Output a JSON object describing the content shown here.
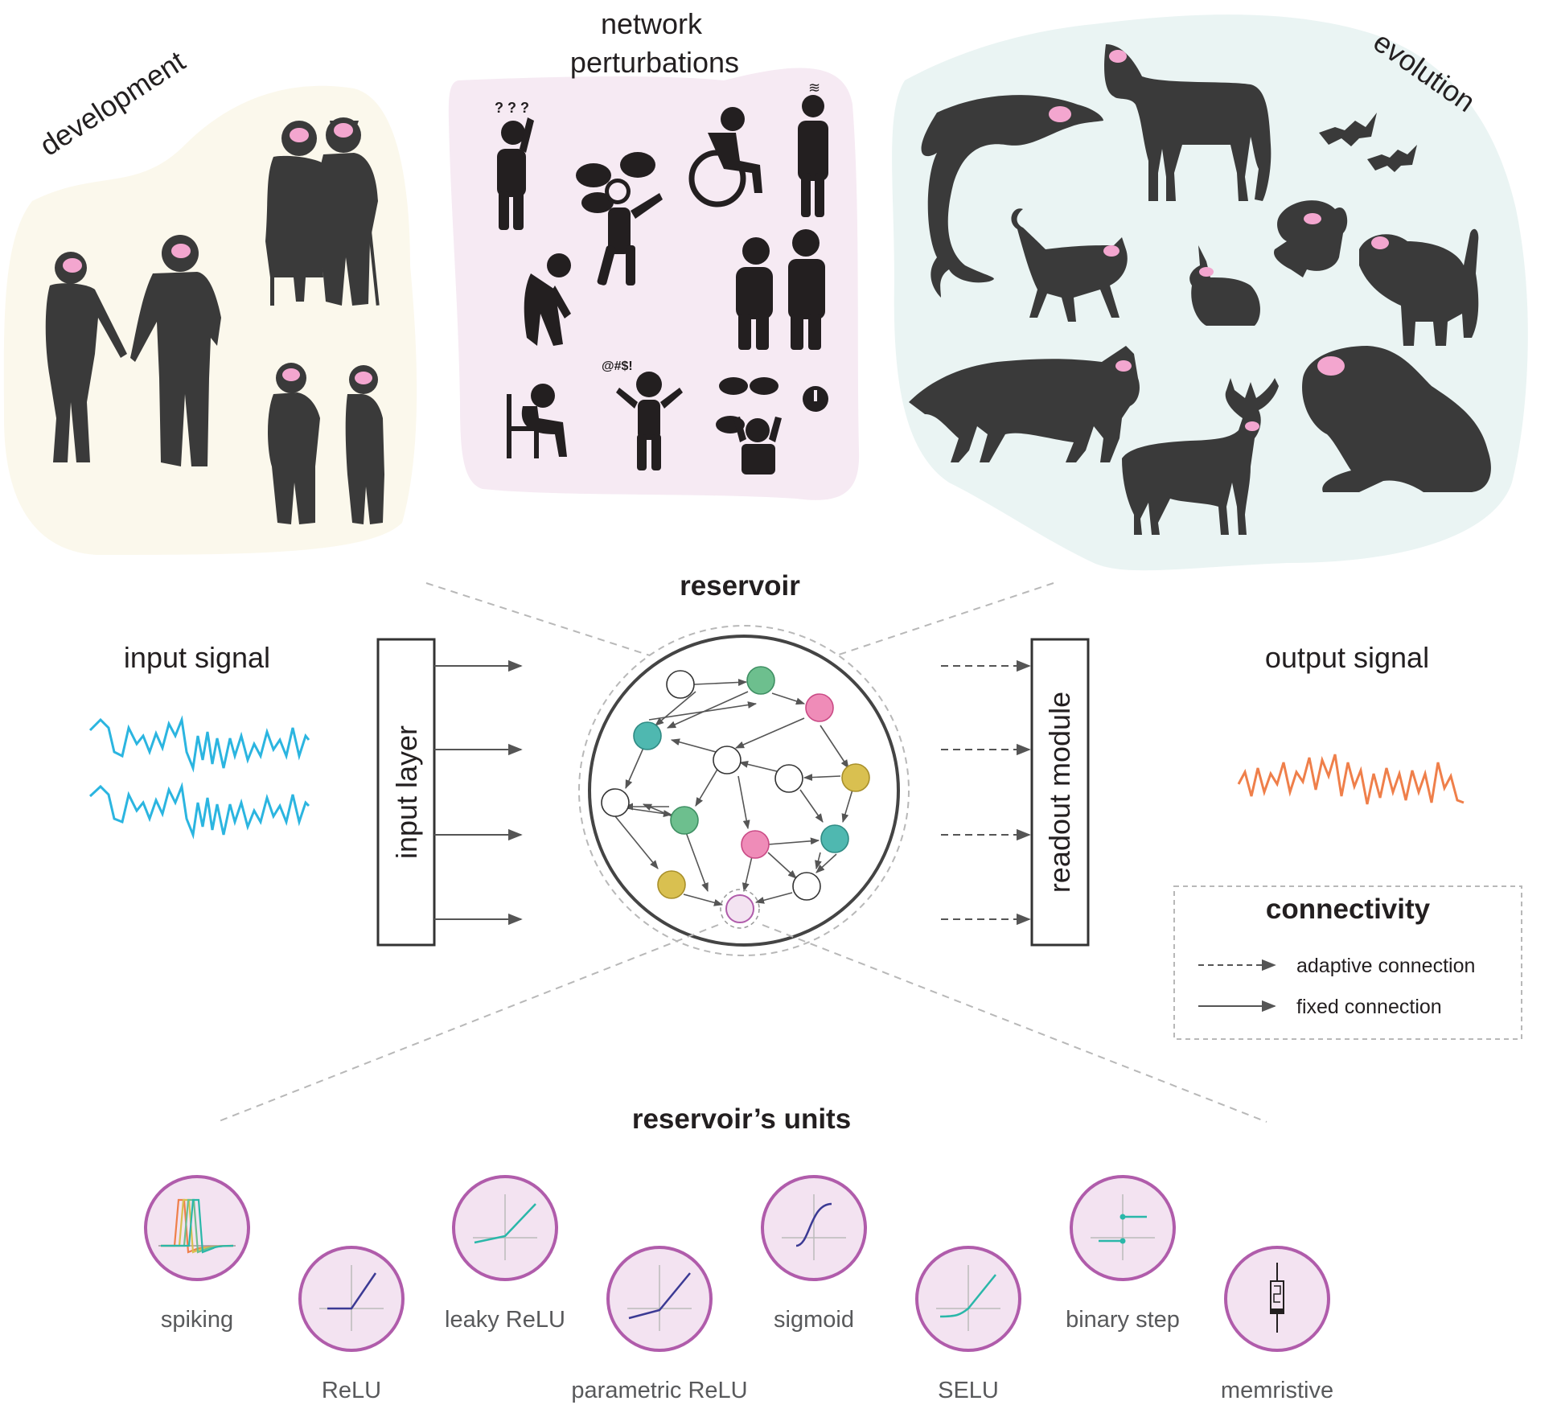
{
  "categories": {
    "development": "development",
    "network_perturbations_line1": "network",
    "network_perturbations_line2": "perturbations",
    "evolution": "evolution"
  },
  "reservoir": {
    "title": "reservoir"
  },
  "input": {
    "signal": "input signal",
    "layer": "input layer"
  },
  "output": {
    "signal": "output signal",
    "readout": "readout module"
  },
  "legend": {
    "title": "connectivity",
    "adaptive": "adaptive connection",
    "fixed": "fixed connection"
  },
  "units": {
    "title": "reservoir’s units",
    "items": [
      {
        "key": "spiking",
        "label": "spiking"
      },
      {
        "key": "relu",
        "label": "ReLU"
      },
      {
        "key": "leaky",
        "label": "leaky ReLU"
      },
      {
        "key": "prelu",
        "label": "parametric ReLU"
      },
      {
        "key": "sigmoid",
        "label": "sigmoid"
      },
      {
        "key": "selu",
        "label": "SELU"
      },
      {
        "key": "step",
        "label": "binary step"
      },
      {
        "key": "memristive",
        "label": "memristive"
      }
    ]
  },
  "colors": {
    "input_wave": "#2bb5e0",
    "output_wave": "#ef7f4a",
    "node_green": "#6dbf8e",
    "node_teal": "#4fb8b0",
    "node_pink": "#ef8cb8",
    "node_yellow": "#d9c050",
    "unit_ring": "#b05cab",
    "unit_fill": "#f3e3f1",
    "blob_development": "#fbf8ec",
    "blob_perturbations": "#f6eaf3",
    "blob_evolution": "#eaf4f3",
    "silhouette": "#3a3a3a",
    "brain": "#f3a6cf"
  }
}
